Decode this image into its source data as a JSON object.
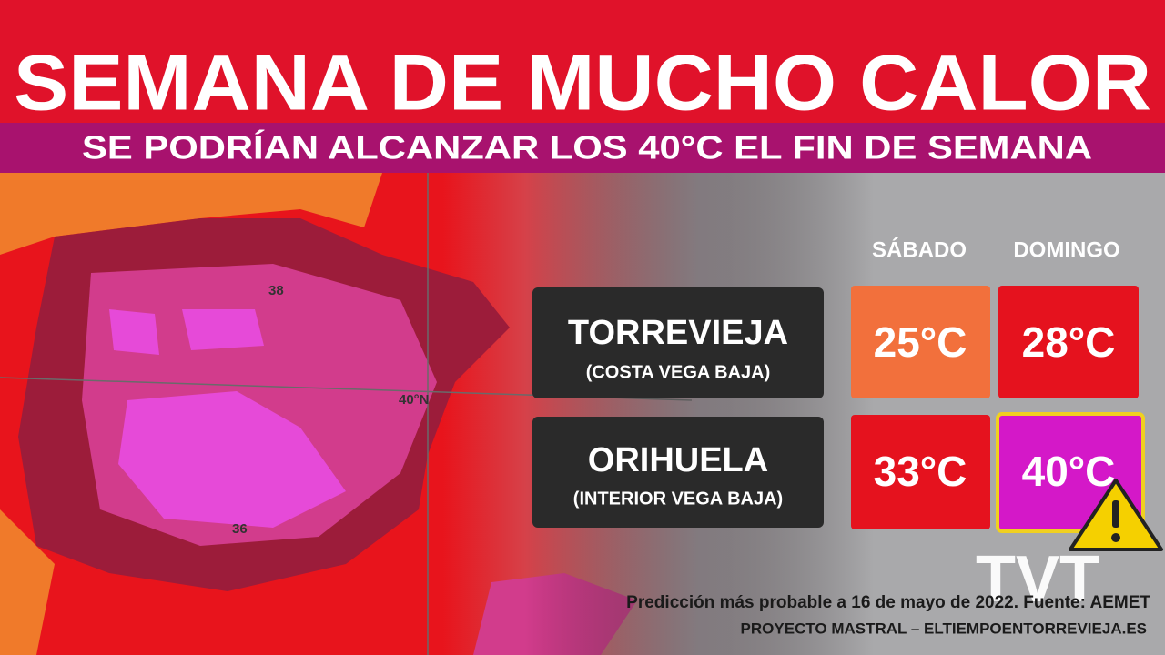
{
  "title": "SEMANA DE MUCHO CALOR",
  "subtitle": "SE PODRÍAN ALCANZAR LOS 40°C EL FIN DE SEMANA",
  "map_labels": [
    "40°N",
    "38",
    "36"
  ],
  "table": {
    "columns": [
      "SÁBADO",
      "DOMINGO"
    ],
    "rows": [
      {
        "name": "TORREVIEJA",
        "area": "(COSTA VEGA BAJA)",
        "temps": [
          "25°C",
          "28°C"
        ]
      },
      {
        "name": "ORIHUELA",
        "area": "(INTERIOR VEGA BAJA)",
        "temps": [
          "33°C",
          "40°C"
        ]
      }
    ]
  },
  "logo": "TVT",
  "footer": {
    "source": "Predicción más probable a 16 de mayo de 2022. Fuente: AEMET",
    "credit": "PROYECTO MASTRAL – ELTIEMPOENTORREVIEJA.ES"
  }
}
